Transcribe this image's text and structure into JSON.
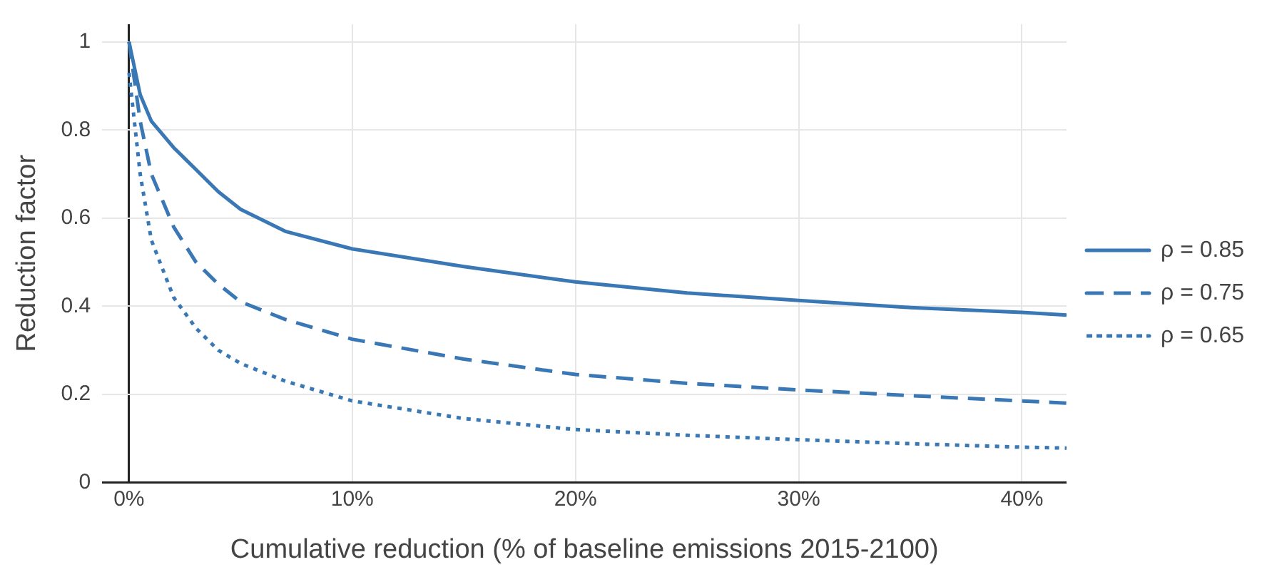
{
  "chart_data": {
    "type": "line",
    "xlabel": "Cumulative reduction (% of baseline emissions 2015-2100)",
    "ylabel": "Reduction factor",
    "x": [
      0,
      0.5,
      1,
      2,
      3,
      4,
      5,
      7,
      10,
      15,
      20,
      25,
      30,
      35,
      40,
      42
    ],
    "series": [
      {
        "name": "ρ = 0.85",
        "color": "#3a78b5",
        "line_style": "solid",
        "values": [
          1,
          0.88,
          0.82,
          0.76,
          0.71,
          0.66,
          0.62,
          0.57,
          0.53,
          0.49,
          0.455,
          0.43,
          0.413,
          0.397,
          0.386,
          0.38
        ]
      },
      {
        "name": "ρ = 0.75",
        "color": "#3a78b5",
        "line_style": "dashed",
        "values": [
          1,
          0.82,
          0.7,
          0.58,
          0.5,
          0.45,
          0.41,
          0.37,
          0.325,
          0.28,
          0.245,
          0.225,
          0.21,
          0.197,
          0.185,
          0.18
        ]
      },
      {
        "name": "ρ = 0.65",
        "color": "#3a78b5",
        "line_style": "dotted",
        "values": [
          0.93,
          0.7,
          0.55,
          0.42,
          0.35,
          0.3,
          0.27,
          0.23,
          0.185,
          0.145,
          0.12,
          0.107,
          0.097,
          0.088,
          0.08,
          0.078
        ]
      }
    ],
    "xlim": [
      -1.2,
      42
    ],
    "xticks": [
      {
        "value": 0,
        "label": "0%"
      },
      {
        "value": 10,
        "label": "10%"
      },
      {
        "value": 20,
        "label": "20%"
      },
      {
        "value": 30,
        "label": "30%"
      },
      {
        "value": 40,
        "label": "40%"
      }
    ],
    "ylim": [
      0,
      1.04
    ],
    "yticks": [
      0,
      0.2,
      0.4,
      0.6,
      0.8,
      1
    ],
    "grid": true,
    "legend": "right",
    "marker": "none"
  }
}
